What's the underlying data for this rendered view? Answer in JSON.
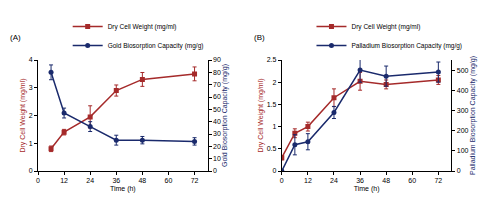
{
  "chart_data": [
    {
      "type": "line",
      "title": "(A)",
      "x_label": "Time (h)",
      "y_label": "Dry Cell Weight (mg/ml)",
      "y2_label": "Gold Biosorption Capacity (mg/g)",
      "xlim": [
        0,
        78
      ],
      "xticks": [
        0,
        12,
        24,
        36,
        48,
        60,
        72
      ],
      "ylim": [
        0,
        4
      ],
      "yticks": [
        0,
        1,
        2,
        3,
        4
      ],
      "y2lim": [
        0,
        90
      ],
      "y2ticks": [
        0,
        10,
        20,
        30,
        40,
        50,
        60,
        70,
        80,
        90
      ],
      "legend": "upper left",
      "grid": false,
      "series": [
        {
          "name": "Dry Cell Weight (mg/ml)",
          "color": "#a52a2a",
          "marker": "square",
          "x": [
            6,
            12,
            24,
            36,
            48,
            72
          ],
          "values": [
            0.8,
            1.4,
            1.95,
            2.9,
            3.3,
            3.5
          ],
          "error": [
            0.1,
            0.1,
            0.4,
            0.2,
            0.25,
            0.25
          ]
        },
        {
          "name": "Gold Biosorption Capacity (mg/g)",
          "color": "#1a2a6c",
          "marker": "circle",
          "axis": "y2",
          "x": [
            6,
            12,
            24,
            36,
            48,
            72
          ],
          "values": [
            80,
            47,
            36,
            25,
            25,
            24
          ],
          "error": [
            6,
            4,
            4,
            4,
            3,
            3
          ]
        }
      ]
    },
    {
      "type": "line",
      "title": "(B)",
      "x_label": "Time (h)",
      "y_label": "Dry Cell Weight (mg/ml)",
      "y2_label": "Palladium Biosorption Capacity (mg/g)",
      "xlim": [
        0,
        78
      ],
      "xticks": [
        0,
        12,
        24,
        36,
        48,
        60,
        72
      ],
      "ylim": [
        0,
        2.5
      ],
      "yticks": [
        0,
        0.5,
        1,
        1.5,
        2,
        2.5
      ],
      "y2lim": [
        0,
        550
      ],
      "y2ticks": [
        0,
        100,
        200,
        300,
        400,
        500
      ],
      "legend": "upper left",
      "grid": false,
      "series": [
        {
          "name": "Dry Cell Weight (mg/ml)",
          "color": "#a52a2a",
          "marker": "square",
          "x": [
            0,
            6,
            12,
            24,
            36,
            48,
            72
          ],
          "values": [
            0.3,
            0.85,
            1.0,
            1.65,
            2.02,
            1.95,
            2.05
          ],
          "error": [
            0.05,
            0.1,
            0.1,
            0.2,
            0.2,
            0.1,
            0.1
          ]
        },
        {
          "name": "Palladium Biosorption Capacity (mg/g)",
          "color": "#1a2a6c",
          "marker": "circle",
          "axis": "y2",
          "x": [
            0,
            6,
            12,
            24,
            36,
            48,
            72
          ],
          "values": [
            0,
            130,
            145,
            290,
            500,
            470,
            490
          ],
          "error": [
            0,
            50,
            40,
            30,
            60,
            50,
            50
          ]
        }
      ]
    }
  ]
}
